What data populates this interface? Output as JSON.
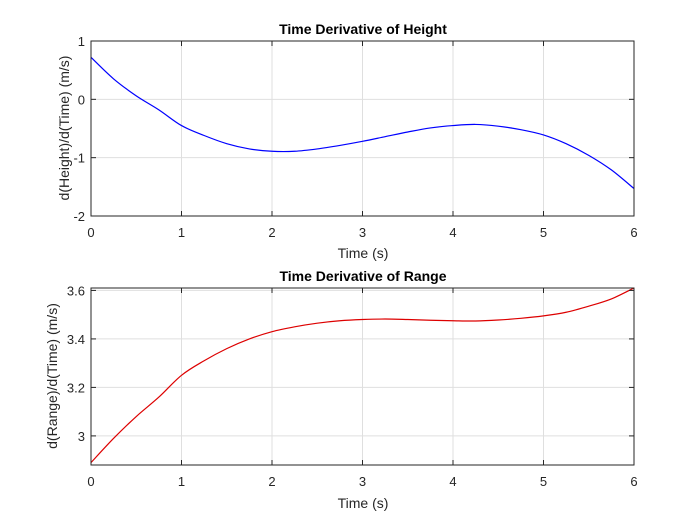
{
  "chart_data": [
    {
      "type": "line",
      "title": "Time Derivative of Height",
      "xlabel": "Time (s)",
      "ylabel": "d(Height)/d(Time) (m/s)",
      "xlim": [
        0,
        6
      ],
      "ylim": [
        -2,
        1
      ],
      "xticks": [
        0,
        1,
        2,
        3,
        4,
        5,
        6
      ],
      "yticks": [
        -2,
        -1,
        0,
        1
      ],
      "grid": true,
      "series": [
        {
          "color": "#0000ff",
          "x": [
            0,
            0.25,
            0.5,
            0.75,
            1,
            1.25,
            1.5,
            1.75,
            2,
            2.25,
            2.5,
            2.75,
            3,
            3.25,
            3.5,
            3.75,
            4,
            4.25,
            4.5,
            4.75,
            5,
            5.25,
            5.5,
            5.75,
            6
          ],
          "y": [
            0.72,
            0.35,
            0.06,
            -0.18,
            -0.45,
            -0.62,
            -0.76,
            -0.85,
            -0.89,
            -0.89,
            -0.85,
            -0.79,
            -0.72,
            -0.64,
            -0.56,
            -0.49,
            -0.45,
            -0.43,
            -0.46,
            -0.52,
            -0.61,
            -0.76,
            -0.96,
            -1.21,
            -1.53
          ]
        }
      ]
    },
    {
      "type": "line",
      "title": "Time Derivative of Range",
      "xlabel": "Time (s)",
      "ylabel": "d(Range)/d(Time) (m/s)",
      "xlim": [
        0,
        6
      ],
      "ylim": [
        2.88,
        3.61
      ],
      "xticks": [
        0,
        1,
        2,
        3,
        4,
        5,
        6
      ],
      "yticks": [
        3.0,
        3.2,
        3.4,
        3.6
      ],
      "ytick_labels": [
        "3",
        "3.2",
        "3.4",
        "3.6"
      ],
      "grid": true,
      "series": [
        {
          "color": "#dd0000",
          "x": [
            0,
            0.25,
            0.5,
            0.75,
            1,
            1.25,
            1.5,
            1.75,
            2,
            2.25,
            2.5,
            2.75,
            3,
            3.25,
            3.5,
            3.75,
            4,
            4.25,
            4.5,
            4.75,
            5,
            5.25,
            5.5,
            5.75,
            6
          ],
          "y": [
            2.89,
            2.99,
            3.08,
            3.16,
            3.25,
            3.31,
            3.36,
            3.4,
            3.43,
            3.45,
            3.465,
            3.475,
            3.48,
            3.482,
            3.48,
            3.477,
            3.475,
            3.474,
            3.478,
            3.485,
            3.495,
            3.51,
            3.535,
            3.565,
            3.61
          ]
        }
      ]
    }
  ]
}
